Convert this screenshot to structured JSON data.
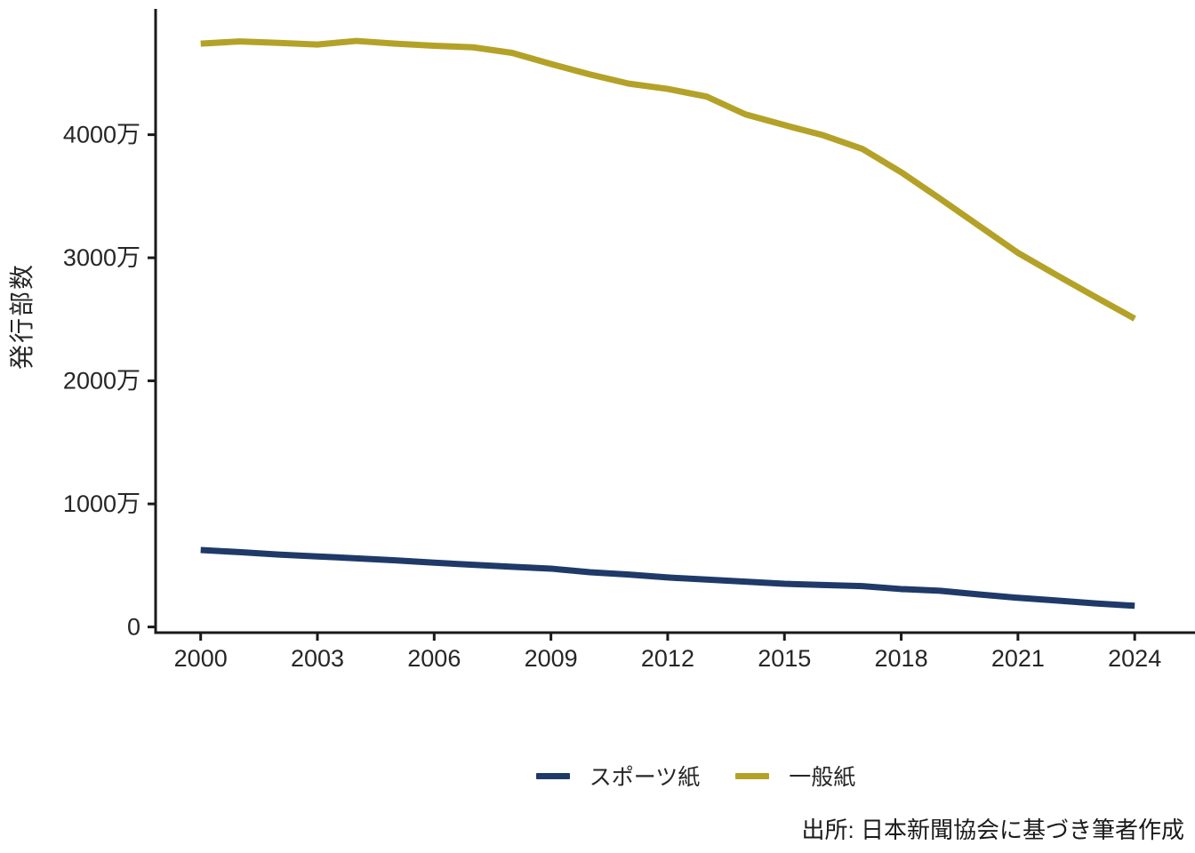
{
  "chart_data": {
    "type": "line",
    "title": "",
    "xlabel": "",
    "ylabel": "発行部数",
    "unit": "万部",
    "grid": false,
    "legend_position": "bottom-center",
    "xlim": [
      2000,
      2024
    ],
    "ylim": [
      0,
      5000
    ],
    "x": [
      2000,
      2001,
      2002,
      2003,
      2004,
      2005,
      2006,
      2007,
      2008,
      2009,
      2010,
      2011,
      2012,
      2013,
      2014,
      2015,
      2016,
      2017,
      2018,
      2019,
      2020,
      2021,
      2022,
      2023,
      2024
    ],
    "x_ticks": [
      2000,
      2003,
      2006,
      2009,
      2012,
      2015,
      2018,
      2021,
      2024
    ],
    "y_ticks": [
      {
        "value": 0,
        "label": "0"
      },
      {
        "value": 1000,
        "label": "1000万"
      },
      {
        "value": 2000,
        "label": "2000万"
      },
      {
        "value": 3000,
        "label": "3000万"
      },
      {
        "value": 4000,
        "label": "4000万"
      }
    ],
    "series": [
      {
        "name": "スポーツ紙",
        "color": "#1f3a68",
        "values": [
          625,
          608,
          588,
          573,
          558,
          541,
          522,
          505,
          489,
          474,
          445,
          426,
          402,
          385,
          368,
          351,
          341,
          332,
          308,
          294,
          264,
          237,
          215,
          191,
          172
        ]
      },
      {
        "name": "一般紙",
        "color": "#b4a228",
        "values": [
          4740,
          4758,
          4746,
          4733,
          4762,
          4740,
          4723,
          4710,
          4665,
          4575,
          4490,
          4415,
          4372,
          4310,
          4165,
          4078,
          3995,
          3885,
          3695,
          3480,
          3260,
          3040,
          2858,
          2680,
          2505
        ]
      }
    ],
    "axis_color": "#1a1a1a",
    "tick_label_color": "#262626",
    "source_note": "出所: 日本新聞協会に基づき筆者作成"
  }
}
